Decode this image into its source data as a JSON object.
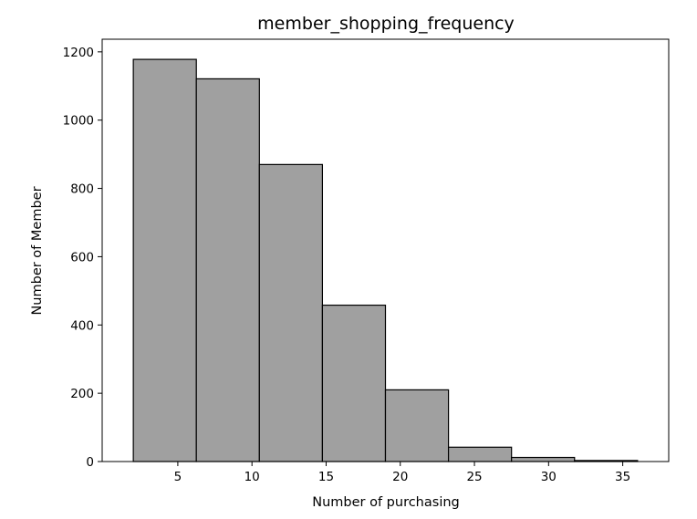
{
  "chart_data": {
    "type": "bar",
    "title": "member_shopping_frequency",
    "xlabel": "Number of purchasing",
    "ylabel": "Number of Member",
    "bins": [
      {
        "x0": 2.0,
        "x1": 6.25,
        "value": 1178
      },
      {
        "x0": 6.25,
        "x1": 10.5,
        "value": 1121
      },
      {
        "x0": 10.5,
        "x1": 14.75,
        "value": 870
      },
      {
        "x0": 14.75,
        "x1": 19.0,
        "value": 458
      },
      {
        "x0": 19.0,
        "x1": 23.25,
        "value": 210
      },
      {
        "x0": 23.25,
        "x1": 27.5,
        "value": 42
      },
      {
        "x0": 27.5,
        "x1": 31.75,
        "value": 12
      },
      {
        "x0": 31.75,
        "x1": 36.0,
        "value": 3
      }
    ],
    "xlim": [
      -0.1,
      38.1
    ],
    "ylim": [
      0,
      1237
    ],
    "xticks": [
      5,
      10,
      15,
      20,
      25,
      30,
      35
    ],
    "yticks": [
      0,
      200,
      400,
      600,
      800,
      1000,
      1200
    ],
    "grid": false,
    "colors": {
      "bar_fill": "#a0a0a0",
      "bar_edge": "#000000",
      "axes": "#000000"
    }
  }
}
